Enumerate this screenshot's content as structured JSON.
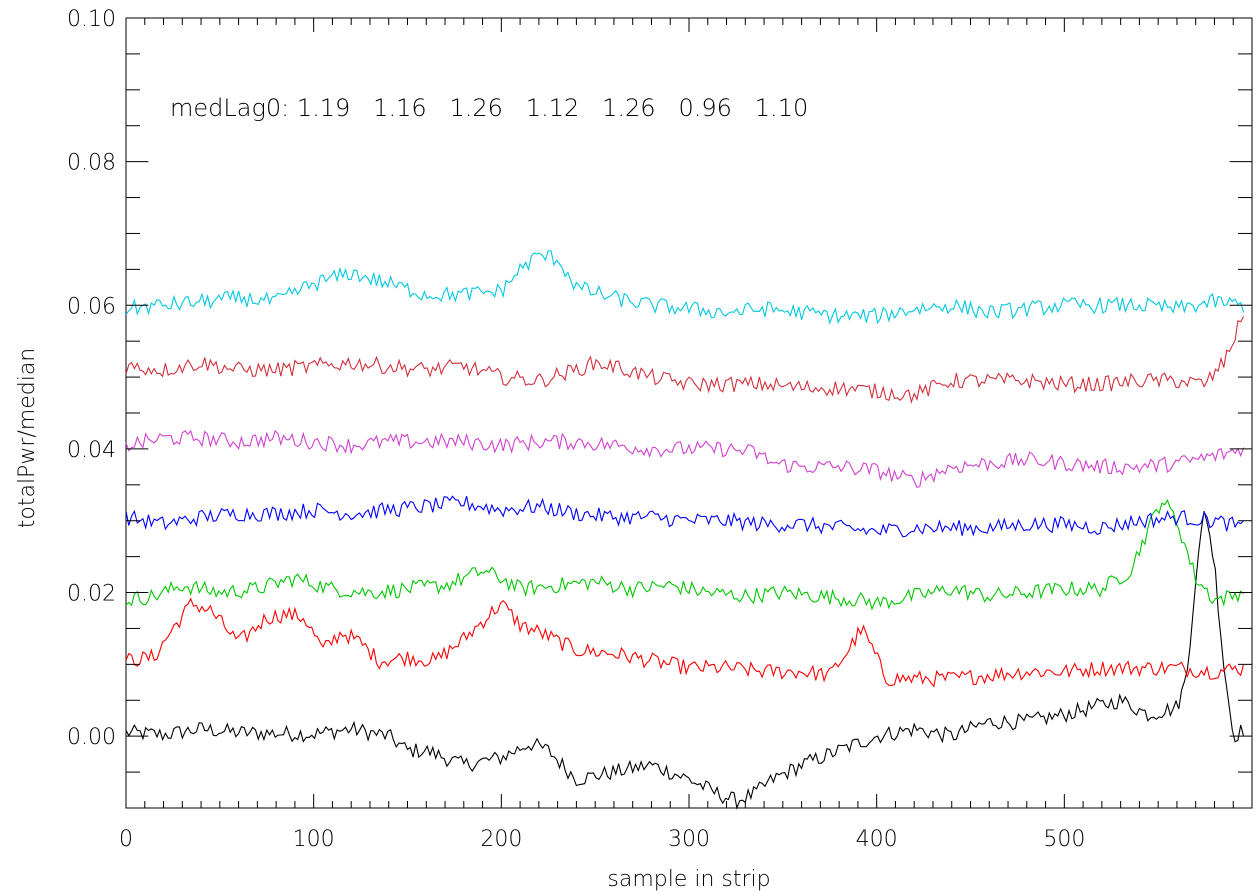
{
  "chart_data": {
    "type": "line",
    "xlabel": "sample in strip",
    "ylabel": "totalPwr/median",
    "xlim": [
      0,
      600
    ],
    "ylim": [
      -0.01,
      0.1
    ],
    "xticks": [
      0,
      100,
      200,
      300,
      400,
      500
    ],
    "xtick_labels": [
      "0",
      "100",
      "200",
      "300",
      "400",
      "500"
    ],
    "yticks": [
      0.0,
      0.02,
      0.04,
      0.06,
      0.08,
      0.1
    ],
    "ytick_labels": [
      "0.00",
      "0.02",
      "0.04",
      "0.06",
      "0.08",
      "0.10"
    ],
    "annotation": "medLag0: 1.19   1.16   1.26   1.12   1.26   0.96   1.10",
    "grid": false,
    "series": [
      {
        "color": "#000000",
        "offset": 0.0,
        "x": [
          0,
          20,
          40,
          60,
          80,
          100,
          120,
          140,
          150,
          160,
          180,
          200,
          215,
          225,
          240,
          260,
          280,
          300,
          315,
          325,
          335,
          345,
          360,
          380,
          400,
          420,
          440,
          460,
          480,
          500,
          515,
          530,
          545,
          560,
          565,
          570,
          575,
          580,
          585,
          590,
          596
        ],
        "y": [
          0.0005,
          0.0002,
          0.001,
          0.0005,
          0.0004,
          0.0003,
          0.001,
          0.0,
          -0.002,
          -0.002,
          -0.004,
          -0.003,
          -0.001,
          -0.002,
          -0.006,
          -0.005,
          -0.004,
          -0.006,
          -0.008,
          -0.009,
          -0.008,
          -0.006,
          -0.004,
          -0.002,
          0.0,
          0.001,
          0.0,
          0.002,
          0.002,
          0.003,
          0.004,
          0.005,
          0.003,
          0.004,
          0.008,
          0.022,
          0.032,
          0.024,
          0.01,
          0.0,
          0.001
        ]
      },
      {
        "color": "#ff0000",
        "offset": 0.01,
        "x": [
          0,
          15,
          25,
          35,
          45,
          60,
          75,
          85,
          95,
          105,
          115,
          125,
          135,
          150,
          165,
          180,
          190,
          200,
          210,
          220,
          240,
          260,
          280,
          300,
          320,
          340,
          360,
          375,
          385,
          392,
          398,
          405,
          420,
          440,
          460,
          480,
          500,
          520,
          540,
          560,
          580,
          596
        ],
        "y": [
          0.0105,
          0.011,
          0.015,
          0.0185,
          0.0175,
          0.013,
          0.0165,
          0.017,
          0.0165,
          0.012,
          0.0145,
          0.013,
          0.0105,
          0.011,
          0.0105,
          0.0135,
          0.016,
          0.0185,
          0.0155,
          0.0145,
          0.012,
          0.0115,
          0.0105,
          0.0095,
          0.0095,
          0.009,
          0.009,
          0.0085,
          0.012,
          0.015,
          0.012,
          0.008,
          0.008,
          0.008,
          0.0085,
          0.009,
          0.009,
          0.0095,
          0.0095,
          0.0095,
          0.009,
          0.0095
        ]
      },
      {
        "color": "#00c800",
        "offset": 0.02,
        "x": [
          0,
          15,
          30,
          50,
          70,
          90,
          110,
          130,
          150,
          170,
          190,
          200,
          210,
          230,
          250,
          270,
          290,
          310,
          330,
          350,
          370,
          390,
          400,
          420,
          440,
          460,
          480,
          500,
          520,
          535,
          545,
          552,
          560,
          570,
          580,
          590,
          596
        ],
        "y": [
          0.019,
          0.0195,
          0.021,
          0.02,
          0.0205,
          0.022,
          0.0205,
          0.02,
          0.0205,
          0.021,
          0.023,
          0.022,
          0.0205,
          0.021,
          0.0215,
          0.0205,
          0.021,
          0.02,
          0.0195,
          0.02,
          0.0195,
          0.019,
          0.0185,
          0.0195,
          0.0205,
          0.0195,
          0.02,
          0.0205,
          0.0205,
          0.023,
          0.029,
          0.033,
          0.03,
          0.022,
          0.019,
          0.0195,
          0.0205
        ]
      },
      {
        "color": "#0000ff",
        "offset": 0.03,
        "x": [
          0,
          20,
          40,
          60,
          80,
          100,
          120,
          140,
          160,
          180,
          200,
          220,
          240,
          260,
          280,
          300,
          320,
          340,
          360,
          380,
          400,
          420,
          440,
          460,
          480,
          500,
          520,
          540,
          560,
          580,
          596
        ],
        "y": [
          0.0305,
          0.0295,
          0.0305,
          0.031,
          0.031,
          0.0315,
          0.031,
          0.0315,
          0.032,
          0.0325,
          0.0315,
          0.032,
          0.031,
          0.0305,
          0.0305,
          0.03,
          0.03,
          0.0295,
          0.0295,
          0.029,
          0.0285,
          0.029,
          0.029,
          0.029,
          0.0295,
          0.0295,
          0.029,
          0.03,
          0.0305,
          0.03,
          0.029
        ]
      },
      {
        "color": "#d040d0",
        "offset": 0.04,
        "x": [
          0,
          20,
          40,
          60,
          80,
          100,
          120,
          140,
          160,
          180,
          200,
          220,
          240,
          260,
          280,
          300,
          320,
          335,
          345,
          360,
          380,
          400,
          420,
          440,
          460,
          480,
          500,
          520,
          540,
          560,
          580,
          596
        ],
        "y": [
          0.0405,
          0.0415,
          0.0415,
          0.041,
          0.0415,
          0.041,
          0.0405,
          0.041,
          0.041,
          0.041,
          0.0405,
          0.041,
          0.041,
          0.0405,
          0.04,
          0.04,
          0.04,
          0.0395,
          0.038,
          0.0375,
          0.0375,
          0.037,
          0.0355,
          0.0375,
          0.038,
          0.0385,
          0.038,
          0.0375,
          0.0375,
          0.038,
          0.039,
          0.04
        ]
      },
      {
        "color": "#d0303c",
        "offset": 0.05,
        "x": [
          0,
          20,
          40,
          60,
          80,
          100,
          120,
          140,
          160,
          180,
          200,
          220,
          240,
          250,
          260,
          280,
          300,
          320,
          340,
          360,
          380,
          400,
          420,
          440,
          460,
          480,
          500,
          520,
          540,
          560,
          575,
          585,
          596
        ],
        "y": [
          0.0515,
          0.051,
          0.052,
          0.051,
          0.051,
          0.0515,
          0.052,
          0.0515,
          0.051,
          0.0515,
          0.05,
          0.0495,
          0.051,
          0.052,
          0.0515,
          0.05,
          0.049,
          0.049,
          0.049,
          0.0485,
          0.0485,
          0.048,
          0.0475,
          0.0495,
          0.0495,
          0.0495,
          0.049,
          0.049,
          0.0495,
          0.0495,
          0.049,
          0.052,
          0.059
        ]
      },
      {
        "color": "#00c8e0",
        "offset": 0.06,
        "x": [
          0,
          20,
          40,
          60,
          80,
          100,
          120,
          140,
          160,
          180,
          200,
          210,
          220,
          230,
          240,
          260,
          280,
          300,
          320,
          340,
          360,
          380,
          400,
          420,
          440,
          460,
          480,
          500,
          520,
          540,
          560,
          580,
          596
        ],
        "y": [
          0.0595,
          0.06,
          0.0605,
          0.061,
          0.0605,
          0.063,
          0.0645,
          0.063,
          0.0615,
          0.0615,
          0.062,
          0.065,
          0.067,
          0.0665,
          0.0625,
          0.061,
          0.06,
          0.0595,
          0.059,
          0.0595,
          0.059,
          0.0585,
          0.0585,
          0.0595,
          0.06,
          0.059,
          0.0595,
          0.06,
          0.06,
          0.06,
          0.0595,
          0.0605,
          0.06
        ]
      }
    ]
  }
}
